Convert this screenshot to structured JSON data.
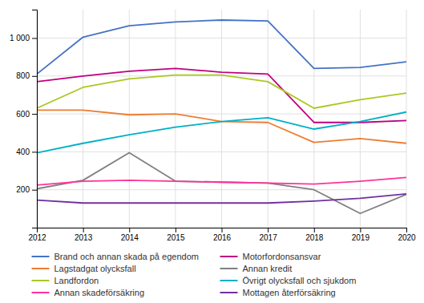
{
  "chart_data": {
    "type": "line",
    "x": [
      2012,
      2013,
      2014,
      2015,
      2016,
      2017,
      2018,
      2019,
      2020
    ],
    "series": [
      {
        "name": "Brand och annan skada på egendom",
        "color": "#4472c4",
        "values": [
          810,
          1005,
          1065,
          1085,
          1095,
          1090,
          840,
          845,
          875
        ]
      },
      {
        "name": "Motorfordonsansvar",
        "color": "#c00080",
        "values": [
          770,
          800,
          825,
          840,
          820,
          810,
          555,
          555,
          565
        ]
      },
      {
        "name": "Lagstadgat olycksfall",
        "color": "#ed7d31",
        "values": [
          620,
          620,
          595,
          600,
          560,
          555,
          450,
          470,
          445
        ]
      },
      {
        "name": "Annan kredit",
        "color": "#808080",
        "values": [
          205,
          250,
          395,
          245,
          240,
          235,
          200,
          75,
          175
        ]
      },
      {
        "name": "Landfordon",
        "color": "#a9c923",
        "values": [
          630,
          740,
          785,
          805,
          805,
          770,
          630,
          675,
          710
        ]
      },
      {
        "name": "Övrigt olycksfall och sjukdom",
        "color": "#00b0c8",
        "values": [
          395,
          445,
          490,
          530,
          560,
          580,
          520,
          560,
          610
        ]
      },
      {
        "name": "Annan skadeförsäkring",
        "color": "#ff3399",
        "values": [
          225,
          245,
          250,
          245,
          240,
          235,
          230,
          245,
          265
        ]
      },
      {
        "name": "Mottagen återförsäkring",
        "color": "#7030a0",
        "values": [
          145,
          130,
          130,
          130,
          130,
          130,
          140,
          155,
          178
        ]
      }
    ],
    "xlim": [
      2012,
      2020
    ],
    "xticks": [
      2012,
      2013,
      2014,
      2015,
      2016,
      2017,
      2018,
      2019,
      2020
    ],
    "ylim": [
      0,
      1150
    ],
    "yticks": [
      200,
      400,
      600,
      800,
      {
        "value": 1000,
        "label": "1 000"
      }
    ],
    "grid": true,
    "legend": "bottom"
  }
}
